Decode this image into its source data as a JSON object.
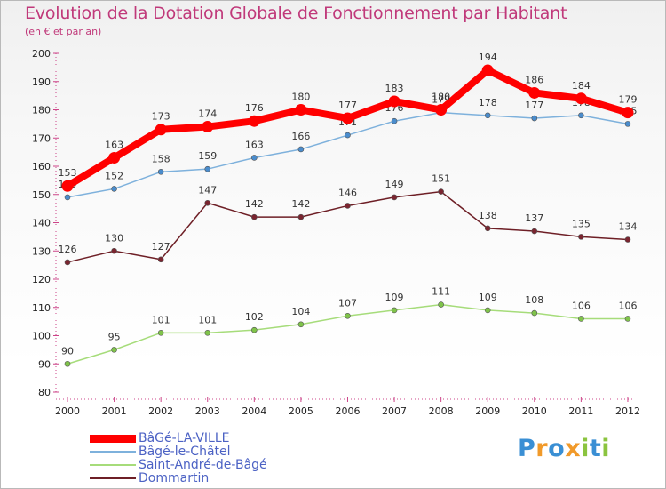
{
  "title": "Evolution de la Dotation Globale de Fonctionnement par Habitant",
  "subtitle": "(en € et par an)",
  "colors": {
    "title": "#c0397a",
    "legend_text": "#4c62c4",
    "axis": "#cc4488"
  },
  "logo": {
    "text": "Proxiti",
    "letters": [
      {
        "ch": "P",
        "color": "#3a8fd4"
      },
      {
        "ch": "r",
        "color": "#f19a2a"
      },
      {
        "ch": "o",
        "color": "#3a8fd4"
      },
      {
        "ch": "x",
        "color": "#f19a2a"
      },
      {
        "ch": "i",
        "color": "#8bc43f"
      },
      {
        "ch": "t",
        "color": "#3a8fd4"
      },
      {
        "ch": "i",
        "color": "#8bc43f"
      }
    ]
  },
  "chart_data": {
    "type": "line",
    "title": "Evolution de la Dotation Globale de Fonctionnement par Habitant",
    "subtitle": "(en € et par an)",
    "x": [
      "2000",
      "2001",
      "2002",
      "2003",
      "2004",
      "2005",
      "2006",
      "2007",
      "2008",
      "2009",
      "2010",
      "2011",
      "2012"
    ],
    "ylim": [
      80,
      200
    ],
    "yticks": [
      80,
      90,
      100,
      110,
      120,
      130,
      140,
      150,
      160,
      170,
      180,
      190,
      200
    ],
    "grid": false,
    "legend_position": "bottom-left",
    "series": [
      {
        "name": "Dommartin",
        "color": "#6e1f26",
        "marker": "#7a2530",
        "values": [
          126,
          130,
          127,
          147,
          142,
          142,
          146,
          149,
          151,
          138,
          137,
          135,
          134
        ]
      },
      {
        "name": "Saint-André-de-Bâgé",
        "color": "#a6dc7a",
        "marker": "#7fc34a",
        "values": [
          90,
          95,
          101,
          101,
          102,
          104,
          107,
          109,
          111,
          109,
          108,
          106,
          106
        ]
      },
      {
        "name": "Bâgé-le-Châtel",
        "color": "#7eb1dc",
        "marker": "#4a8ccc",
        "values": [
          149,
          152,
          158,
          159,
          163,
          166,
          171,
          176,
          179,
          178,
          177,
          178,
          175
        ]
      },
      {
        "name": "BâGé-LA-VILLE",
        "color": "#ff0000",
        "marker": "#ff0000",
        "values": [
          153,
          163,
          173,
          174,
          176,
          180,
          177,
          183,
          180,
          194,
          186,
          184,
          179
        ]
      }
    ],
    "legend": [
      "BâGé-LA-VILLE",
      "Bâgé-le-Châtel",
      "Saint-André-de-Bâgé",
      "Dommartin"
    ]
  }
}
